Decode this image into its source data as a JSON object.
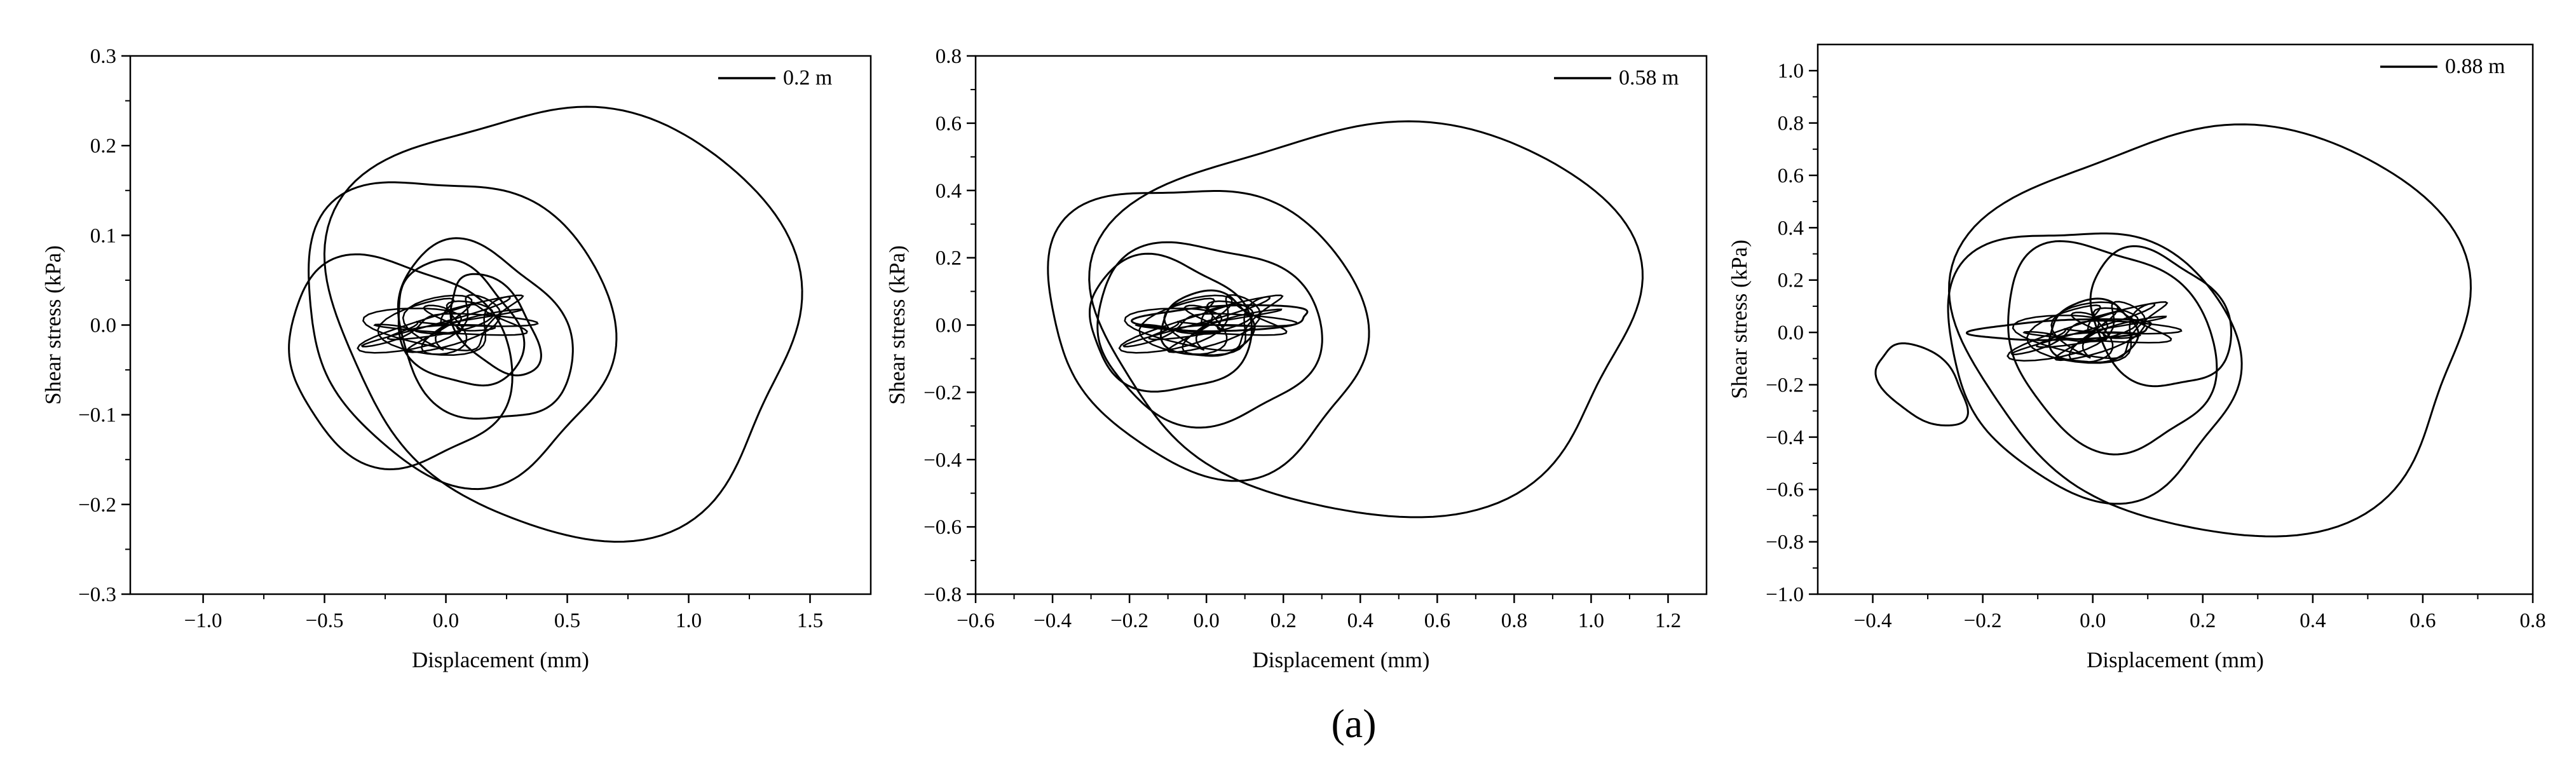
{
  "figure": {
    "caption": "(a)"
  },
  "chart_data": [
    {
      "type": "line",
      "xlabel": "Displacement (mm)",
      "ylabel": "Shear stress (kPa)",
      "xlim": [
        -1.3,
        1.75
      ],
      "ylim": [
        -0.3,
        0.3
      ],
      "xticks": [
        "-1.0",
        "-0.5",
        "0.0",
        "0.5",
        "1.0",
        "1.5"
      ],
      "xtick_values": [
        -1.0,
        -0.5,
        0.0,
        0.5,
        1.0,
        1.5
      ],
      "yticks": [
        "-0.3",
        "-0.2",
        "-0.1",
        "0.0",
        "0.1",
        "0.2",
        "0.3"
      ],
      "ytick_values": [
        -0.3,
        -0.2,
        -0.1,
        0.0,
        0.1,
        0.2,
        0.3
      ],
      "grid": false,
      "legend_position": "top-right",
      "series": [
        {
          "name": "0.2 m",
          "color": "#000000",
          "loops": [
            {
              "cx": 0.5,
              "cy": 0.01,
              "rx": 0.95,
              "ry": 0.24,
              "angle": 0.15,
              "amp": 1.0
            },
            {
              "cx": 0.05,
              "cy": 0.0,
              "rx": 0.65,
              "ry": 0.18,
              "angle": 0.2,
              "amp": 0.95
            },
            {
              "cx": -0.2,
              "cy": -0.04,
              "rx": 0.5,
              "ry": 0.13,
              "angle": 0.25,
              "amp": 0.9
            },
            {
              "cx": 0.15,
              "cy": -0.01,
              "rx": 0.4,
              "ry": 0.12,
              "angle": 0.3,
              "amp": 0.85
            },
            {
              "cx": 0.05,
              "cy": 0.0,
              "rx": 0.3,
              "ry": 0.09,
              "angle": 0.35,
              "amp": 0.8
            },
            {
              "cx": 0.2,
              "cy": 0.0,
              "rx": 0.2,
              "ry": 0.08,
              "angle": 0.4,
              "amp": 0.75
            }
          ]
        }
      ]
    },
    {
      "type": "line",
      "xlabel": "Displacement (mm)",
      "ylabel": "Shear stress (kPa)",
      "xlim": [
        -0.6,
        1.3
      ],
      "ylim": [
        -0.8,
        0.8
      ],
      "xticks": [
        "-0.6",
        "-0.4",
        "-0.2",
        "0.0",
        "0.2",
        "0.4",
        "0.6",
        "0.8",
        "1.0",
        "1.2"
      ],
      "xtick_values": [
        -0.6,
        -0.4,
        -0.2,
        0.0,
        0.2,
        0.4,
        0.6,
        0.8,
        1.0,
        1.2
      ],
      "yticks": [
        "-0.8",
        "-0.6",
        "-0.4",
        "-0.2",
        "0.0",
        "0.2",
        "0.4",
        "0.6",
        "0.8"
      ],
      "ytick_values": [
        -0.8,
        -0.6,
        -0.4,
        -0.2,
        0.0,
        0.2,
        0.4,
        0.6,
        0.8
      ],
      "grid": false,
      "legend_position": "top-right",
      "series": [
        {
          "name": "0.58 m",
          "color": "#000000",
          "loops": [
            {
              "cx": 0.43,
              "cy": 0.03,
              "rx": 0.7,
              "ry": 0.58,
              "angle": 0.22,
              "amp": 1.0
            },
            {
              "cx": 0.0,
              "cy": 0.0,
              "rx": 0.42,
              "ry": 0.46,
              "angle": 0.3,
              "amp": 0.95
            },
            {
              "cx": 0.0,
              "cy": -0.02,
              "rx": 0.32,
              "ry": 0.3,
              "angle": 0.35,
              "amp": 0.9
            },
            {
              "cx": -0.1,
              "cy": 0.0,
              "rx": 0.24,
              "ry": 0.24,
              "angle": 0.4,
              "amp": 0.85
            },
            {
              "cx": 0.0,
              "cy": 0.0,
              "rx": 0.15,
              "ry": 0.12,
              "angle": 0.35,
              "amp": 0.8
            },
            {
              "cx": 0.05,
              "cy": 0.02,
              "rx": 0.3,
              "ry": 0.05,
              "angle": 0.05,
              "amp": 0.75
            }
          ]
        }
      ]
    },
    {
      "type": "line",
      "xlabel": "Displacement (mm)",
      "ylabel": "Shear stress (kPa)",
      "xlim": [
        -0.5,
        0.8
      ],
      "ylim": [
        -1.0,
        1.1
      ],
      "xticks": [
        "-0.4",
        "-0.2",
        "0.0",
        "0.2",
        "0.4",
        "0.6",
        "0.8"
      ],
      "xtick_values": [
        -0.4,
        -0.2,
        0.0,
        0.2,
        0.4,
        0.6,
        0.8
      ],
      "yticks": [
        "-1.0",
        "-0.8",
        "-0.6",
        "-0.4",
        "-0.2",
        "0.0",
        "0.2",
        "0.4",
        "0.6",
        "0.8",
        "1.0"
      ],
      "ytick_values": [
        -1.0,
        -0.8,
        -0.6,
        -0.4,
        -0.2,
        0.0,
        0.2,
        0.4,
        0.6,
        0.8,
        1.0
      ],
      "grid": false,
      "legend_position": "top-right",
      "series": [
        {
          "name": "0.88 m",
          "color": "#000000",
          "loops": [
            {
              "cx": 0.23,
              "cy": 0.02,
              "rx": 0.46,
              "ry": 0.78,
              "angle": 0.28,
              "amp": 1.0
            },
            {
              "cx": 0.0,
              "cy": -0.1,
              "rx": 0.27,
              "ry": 0.55,
              "angle": 0.3,
              "amp": 0.95
            },
            {
              "cx": 0.03,
              "cy": -0.05,
              "rx": 0.2,
              "ry": 0.45,
              "angle": 0.35,
              "amp": 0.9
            },
            {
              "cx": 0.12,
              "cy": 0.05,
              "rx": 0.14,
              "ry": 0.32,
              "angle": 0.4,
              "amp": 0.85
            },
            {
              "cx": 0.0,
              "cy": 0.0,
              "rx": 0.1,
              "ry": 0.15,
              "angle": 0.35,
              "amp": 0.8
            },
            {
              "cx": -0.05,
              "cy": 0.01,
              "rx": 0.22,
              "ry": 0.05,
              "angle": 0.05,
              "amp": 0.75
            },
            {
              "cx": -0.31,
              "cy": -0.2,
              "rx": 0.08,
              "ry": 0.22,
              "angle": 0.6,
              "amp": 0.8
            }
          ]
        }
      ]
    }
  ]
}
